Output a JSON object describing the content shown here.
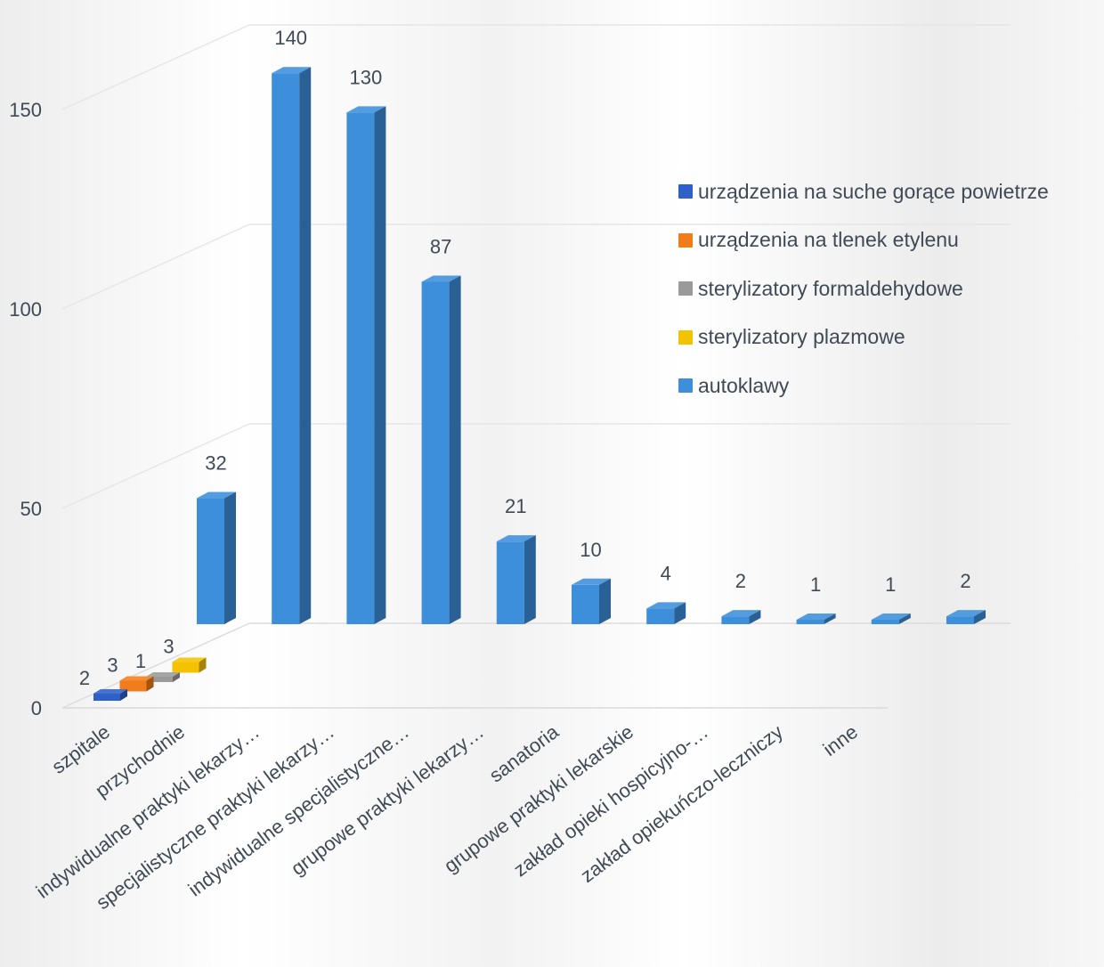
{
  "chart_data": {
    "type": "bar",
    "subtype": "3d-depth-column",
    "categories": [
      "szpitale",
      "przychodnie",
      "indywidualne praktyki lekarzy…",
      "specjalistyczne praktyki lekarzy…",
      "indywidualne specjalistyczne…",
      "grupowe praktyki lekarzy…",
      "sanatoria",
      "grupowe praktyki lekarskie",
      "zakład opieki hospicyjno-…",
      "zakład opiekuńczo-leczniczy",
      "inne"
    ],
    "series": [
      {
        "name": "urządzenia na suche gorące powietrze",
        "color": "#2f5fc8",
        "values": [
          2,
          null,
          null,
          null,
          null,
          null,
          null,
          null,
          null,
          null,
          null
        ]
      },
      {
        "name": "urządzenia na tlenek etylenu",
        "color": "#f07c1c",
        "values": [
          3,
          null,
          null,
          null,
          null,
          null,
          null,
          null,
          null,
          null,
          null
        ]
      },
      {
        "name": "sterylizatory formaldehydowe",
        "color": "#9a9a9a",
        "values": [
          1,
          null,
          null,
          null,
          null,
          null,
          null,
          null,
          null,
          null,
          null
        ]
      },
      {
        "name": "sterylizatory plazmowe",
        "color": "#f5c200",
        "values": [
          3,
          null,
          null,
          null,
          null,
          null,
          null,
          null,
          null,
          null,
          null
        ]
      },
      {
        "name": "autoklawy",
        "color": "#3d8fdc",
        "values": [
          32,
          140,
          130,
          87,
          21,
          10,
          4,
          2,
          1,
          1,
          2
        ]
      }
    ],
    "y_ticks": [
      "0",
      "50",
      "100",
      "150"
    ],
    "ylim": [
      0,
      160
    ],
    "legend_position": "right",
    "grid": true,
    "data_labels": true
  }
}
